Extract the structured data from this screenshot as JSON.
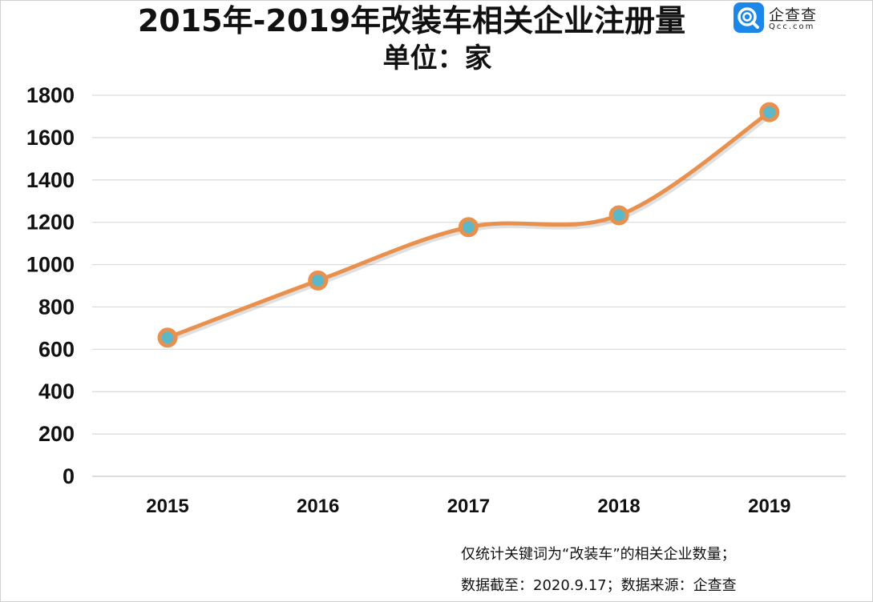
{
  "brand": {
    "name": "企查查",
    "domain": "Qcc.com",
    "badge_color": "#1b87e8"
  },
  "chart_data": {
    "type": "line",
    "title": "2015年-2019年改装车相关企业注册量",
    "subtitle": "单位：家",
    "categories": [
      "2015",
      "2016",
      "2017",
      "2018",
      "2019"
    ],
    "series": [
      {
        "values": [
          655,
          925,
          1177,
          1233,
          1720
        ],
        "line_color": "#e8914e",
        "marker_fill": "#5bb8c8",
        "marker_stroke": "#e8914e"
      }
    ],
    "ylim": [
      0,
      1800
    ],
    "yticks": [
      "0",
      "200",
      "400",
      "600",
      "800",
      "1000",
      "1200",
      "1400",
      "1600",
      "1800"
    ],
    "grid": true,
    "smooth": true,
    "xlabel": "",
    "ylabel": ""
  },
  "notes": {
    "line1": "仅统计关键词为“改装车”的相关企业数量；",
    "line2": "数据截至：2020.9.17；数据来源：企查查"
  }
}
